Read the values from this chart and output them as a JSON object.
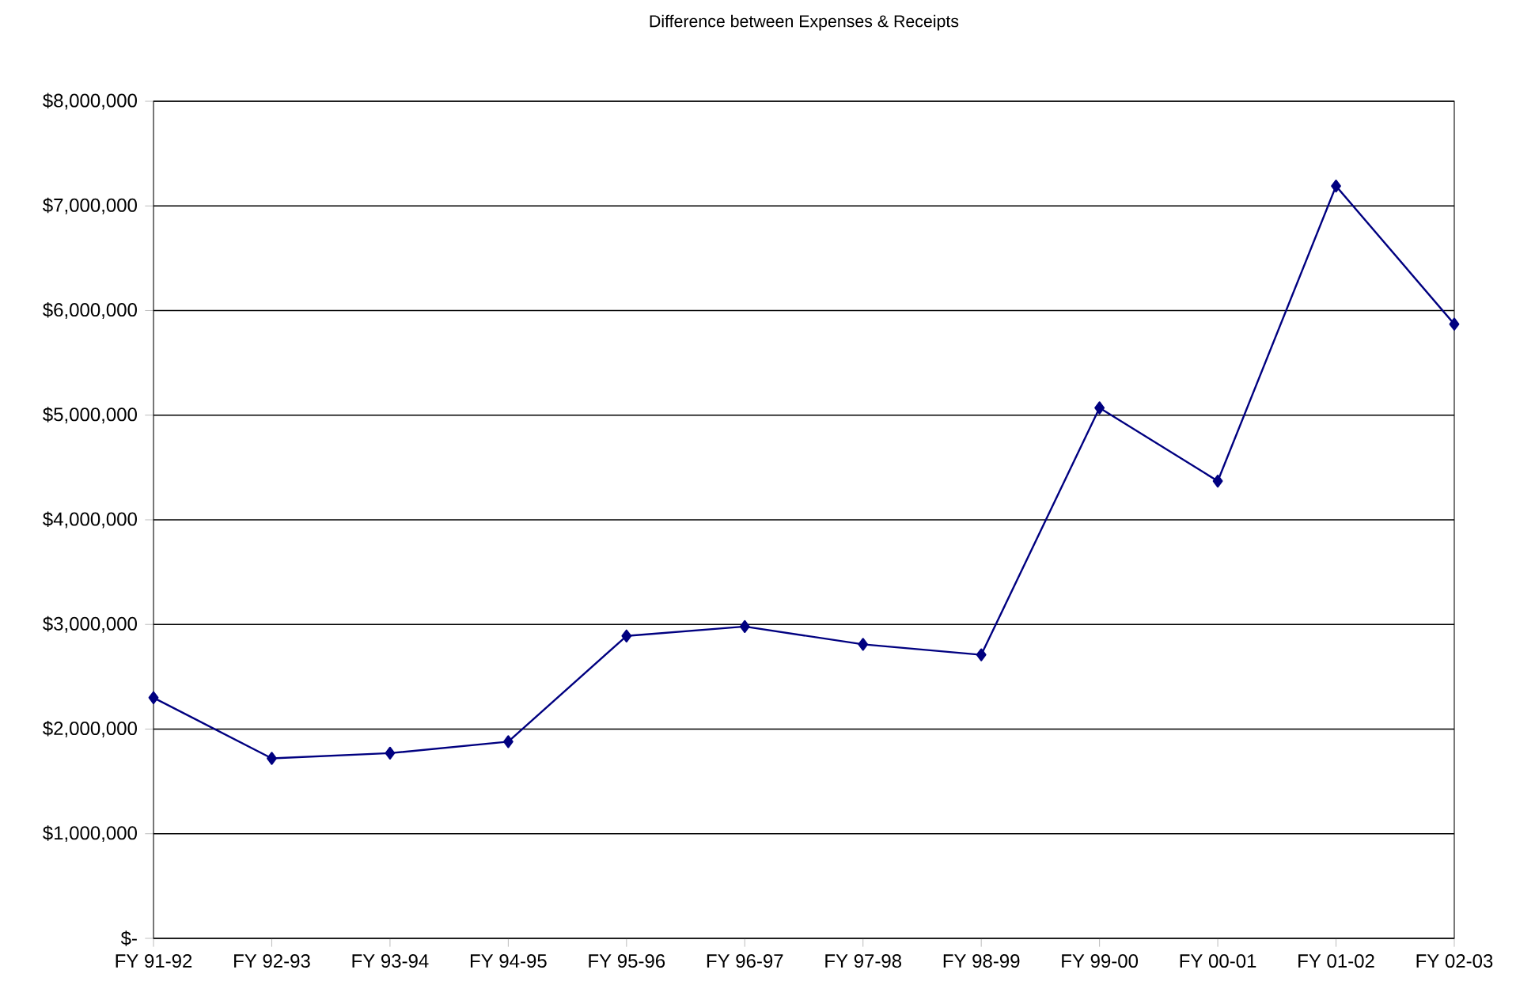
{
  "chart_data": {
    "type": "line",
    "title": "Difference between Expenses & Receipts",
    "categories": [
      "FY 91-92",
      "FY 92-93",
      "FY 93-94",
      "FY 94-95",
      "FY 95-96",
      "FY 96-97",
      "FY 97-98",
      "FY 98-99",
      "FY 99-00",
      "FY 00-01",
      "FY 01-02",
      "FY 02-03"
    ],
    "series": [
      {
        "color": "#000080",
        "values": [
          2300000,
          1720000,
          1770000,
          1880000,
          2890000,
          2980000,
          2810000,
          2710000,
          5070000,
          4370000,
          7190000,
          5870000
        ]
      }
    ],
    "ylim": [
      0,
      8000000
    ],
    "yticks": [
      {
        "value": 0,
        "label": "$-"
      },
      {
        "value": 1000000,
        "label": "$1,000,000"
      },
      {
        "value": 2000000,
        "label": "$2,000,000"
      },
      {
        "value": 3000000,
        "label": "$3,000,000"
      },
      {
        "value": 4000000,
        "label": "$4,000,000"
      },
      {
        "value": 5000000,
        "label": "$5,000,000"
      },
      {
        "value": 6000000,
        "label": "$6,000,000"
      },
      {
        "value": 7000000,
        "label": "$7,000,000"
      },
      {
        "value": 8000000,
        "label": "$8,000,000"
      }
    ],
    "grid": "y",
    "marker": "diamond",
    "line_style": "solid"
  }
}
